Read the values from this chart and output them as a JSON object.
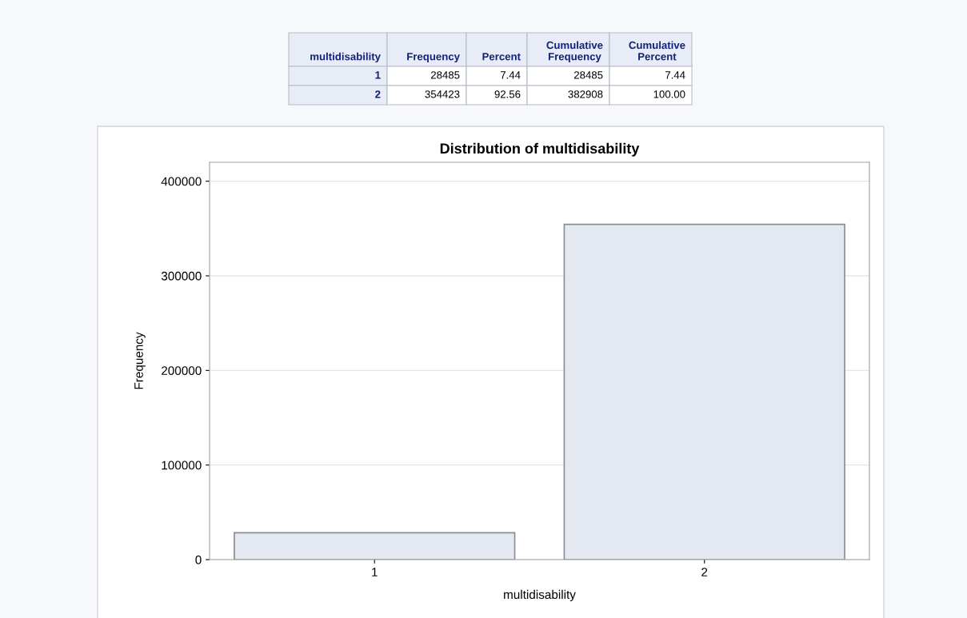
{
  "chart_data": {
    "type": "bar",
    "title": "Distribution of multidisability",
    "xlabel": "multidisability",
    "ylabel": "Frequency",
    "categories": [
      "1",
      "2"
    ],
    "values": [
      28485,
      354423
    ],
    "color": "#e4e8f0",
    "ylim": [
      0,
      420000
    ],
    "yticks": [
      0,
      100000,
      200000,
      300000,
      400000
    ],
    "grid": "y",
    "annotations": [
      "multidisability",
      "Frequency",
      "Percent",
      "Cumulative\nFrequency",
      "Cumulative\nPercent",
      "1",
      "28485",
      "7.44",
      "28485",
      "7.44",
      "2",
      "354423",
      "92.56",
      "382908",
      "100.00"
    ]
  }
}
